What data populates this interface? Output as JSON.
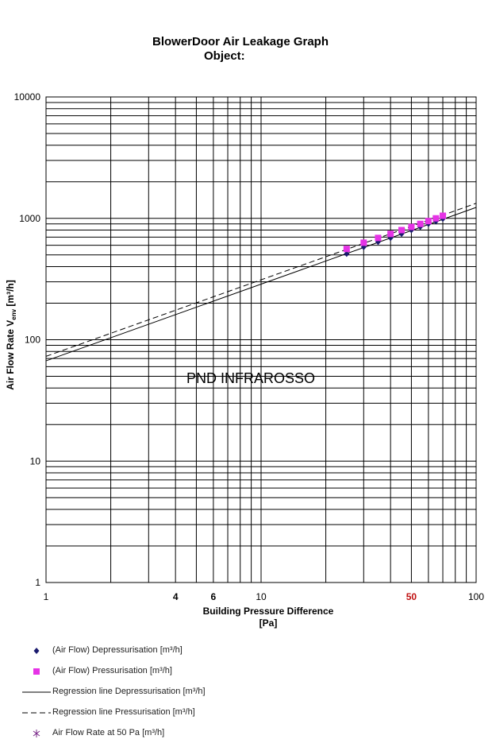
{
  "header": {
    "title": "BlowerDoor Air Leakage Graph",
    "subtitle": "Object:"
  },
  "chart_data": {
    "type": "scatter",
    "xscale": "log",
    "yscale": "log",
    "xlim": [
      1,
      100
    ],
    "ylim": [
      1,
      10000
    ],
    "xlabel": "Building Pressure  Difference",
    "xlabel_unit": "[Pa]",
    "ylabel": "Air Flow Rate V",
    "ylabel_sub": "env",
    "ylabel_unit": "[m³/h]",
    "x_ticks": [
      {
        "value": 1,
        "label": "1"
      },
      {
        "value": 4,
        "label": "4"
      },
      {
        "value": 6,
        "label": "6"
      },
      {
        "value": 10,
        "label": "10"
      },
      {
        "value": 50,
        "label": "50"
      },
      {
        "value": 100,
        "label": "100"
      }
    ],
    "y_ticks": [
      {
        "value": 1,
        "label": "1"
      },
      {
        "value": 10,
        "label": "10"
      },
      {
        "value": 100,
        "label": "100"
      },
      {
        "value": 1000,
        "label": "1000"
      },
      {
        "value": 10000,
        "label": "10000"
      }
    ],
    "annotation": "PND INFRAROSSO",
    "grid": true,
    "legend_position": "bottom",
    "series": [
      {
        "name": "(Air Flow) Depressurisation [m³/h]",
        "kind": "points",
        "marker": "diamond",
        "color": "#1a1a6e",
        "points": [
          [
            25,
            510
          ],
          [
            30,
            580
          ],
          [
            35,
            640
          ],
          [
            40,
            690
          ],
          [
            45,
            745
          ],
          [
            50,
            800
          ],
          [
            55,
            850
          ],
          [
            60,
            900
          ],
          [
            65,
            945
          ],
          [
            70,
            990
          ]
        ]
      },
      {
        "name": "(Air Flow) Pressurisation [m³/h]",
        "kind": "points",
        "marker": "square",
        "color": "#e633e6",
        "points": [
          [
            25,
            560
          ],
          [
            30,
            630
          ],
          [
            35,
            690
          ],
          [
            40,
            745
          ],
          [
            45,
            800
          ],
          [
            50,
            850
          ],
          [
            55,
            900
          ],
          [
            60,
            950
          ],
          [
            65,
            1000
          ],
          [
            70,
            1050
          ]
        ]
      },
      {
        "name": "Regression line Depressurisation [m³/h]",
        "kind": "line",
        "dash": "solid",
        "color": "#000000",
        "points": [
          [
            1,
            67
          ],
          [
            100,
            1230
          ]
        ]
      },
      {
        "name": "Regression line Pressurisation [m³/h]",
        "kind": "line",
        "dash": "dashed",
        "color": "#000000",
        "points": [
          [
            1,
            73
          ],
          [
            100,
            1330
          ]
        ]
      },
      {
        "name": "Air Flow Rate at 50 Pa [m³/h]",
        "kind": "points",
        "marker": "star",
        "color": "#7a2a8a",
        "points": []
      }
    ]
  }
}
